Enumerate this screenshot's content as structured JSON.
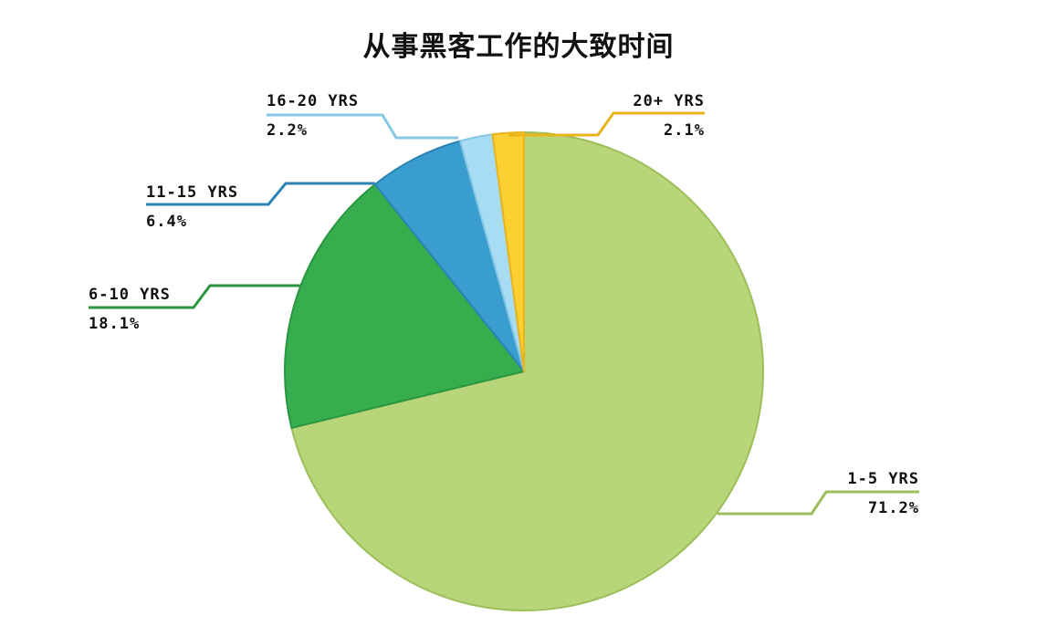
{
  "chart_data": {
    "type": "pie",
    "title": "从事黑客工作的大致时间",
    "slices": [
      {
        "label": "1-5 YRS",
        "value": 71.2,
        "value_label": "71.2%",
        "color": "#b8d57a",
        "stroke": "#9cbf5a"
      },
      {
        "label": "6-10 YRS",
        "value": 18.1,
        "value_label": "18.1%",
        "color": "#36ae4e",
        "stroke": "#2a9640"
      },
      {
        "label": "11-15 YRS",
        "value": 6.4,
        "value_label": "6.4%",
        "color": "#3a9dcf",
        "stroke": "#2c84b4"
      },
      {
        "label": "16-20 YRS",
        "value": 2.2,
        "value_label": "2.2%",
        "color": "#a7dcf3",
        "stroke": "#86c8e6"
      },
      {
        "label": "20+ YRS",
        "value": 2.1,
        "value_label": "2.1%",
        "color": "#fccf33",
        "stroke": "#e9b41a"
      }
    ],
    "start_angle": "12 o'clock",
    "direction": "clockwise",
    "legend": "none"
  }
}
